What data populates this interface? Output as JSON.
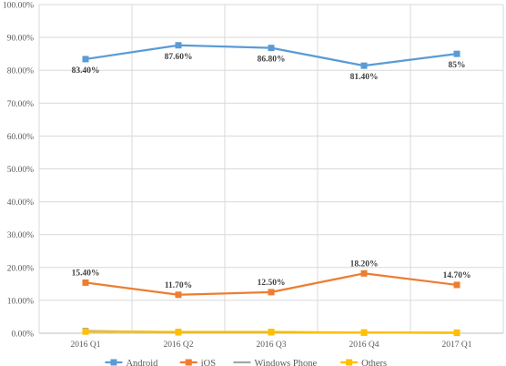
{
  "chart_data": {
    "type": "line",
    "title": "",
    "xlabel": "",
    "ylabel": "",
    "categories": [
      "2016 Q1",
      "2016 Q2",
      "2016 Q3",
      "2016 Q4",
      "2017 Q1"
    ],
    "y_ticks": [
      "0.00%",
      "10.00%",
      "20.00%",
      "30.00%",
      "40.00%",
      "50.00%",
      "60.00%",
      "70.00%",
      "80.00%",
      "90.00%",
      "100.00%"
    ],
    "ylim": [
      0,
      100
    ],
    "grid": true,
    "legend_position": "bottom",
    "series": [
      {
        "name": "Android",
        "color": "#5b9bd5",
        "values": [
          83.4,
          87.6,
          86.8,
          81.4,
          85.0
        ],
        "data_labels": [
          "83.40%",
          "87.60%",
          "86.80%",
          "81.40%",
          "85%"
        ],
        "label_position": "below"
      },
      {
        "name": "iOS",
        "color": "#ed7d31",
        "values": [
          15.4,
          11.7,
          12.5,
          18.2,
          14.7
        ],
        "data_labels": [
          "15.40%",
          "11.70%",
          "12.50%",
          "18.20%",
          "14.70%"
        ],
        "label_position": "above"
      },
      {
        "name": "Windows Phone",
        "color": "#a5a5a5",
        "values": [
          0.7,
          0.3,
          0.3,
          0.2,
          0.1
        ],
        "data_labels": []
      },
      {
        "name": "Others",
        "color": "#ffc000",
        "values": [
          0.5,
          0.4,
          0.4,
          0.2,
          0.2
        ],
        "data_labels": []
      }
    ]
  }
}
